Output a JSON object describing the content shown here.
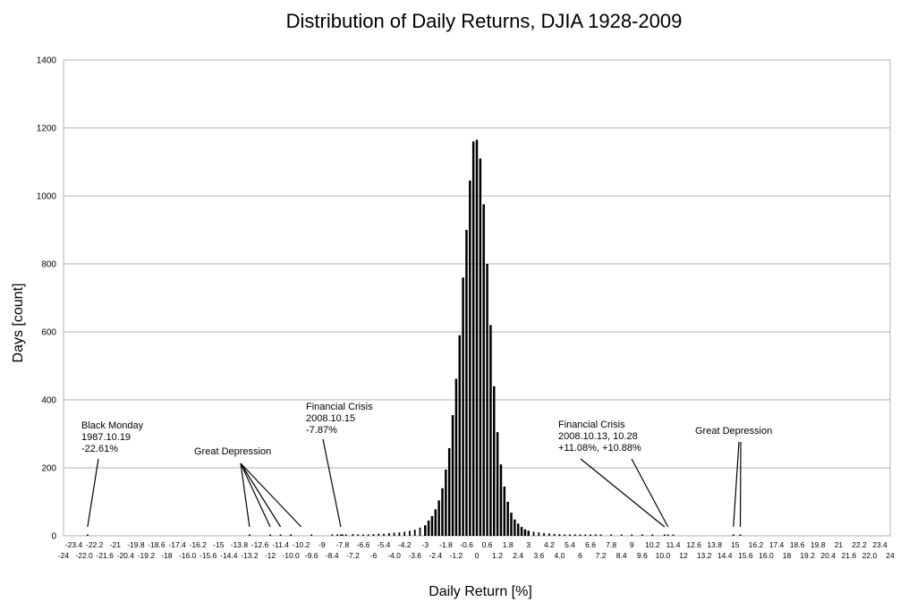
{
  "chart_data": {
    "type": "bar",
    "title": "Distribution of Daily Returns, DJIA 1928-2009",
    "xlabel": "Daily Return [%]",
    "ylabel": "Days [count]",
    "xlim": [
      -24,
      24
    ],
    "ylim": [
      0,
      1400
    ],
    "yticks": [
      "0",
      "200",
      "400",
      "600",
      "800",
      "1000",
      "1200",
      "1400"
    ],
    "grid": true,
    "legend": "none",
    "bar_color": "#000000",
    "x_tick_labels_upper": [
      "-23.4",
      "-22.2",
      "-21",
      "-19.8",
      "-18.6",
      "-17.4",
      "-16.2",
      "-15",
      "-13.8",
      "-12.6",
      "-11.4",
      "-10.2",
      "-9",
      "-7.8",
      "-6.6",
      "-5.4",
      "-4.2",
      "-3",
      "-1.8",
      "-0.6",
      "0.6",
      "1.8",
      "3",
      "4.2",
      "5.4",
      "6.6",
      "7.8",
      "9",
      "10.2",
      "11.4",
      "12.6",
      "13.8",
      "15",
      "16.2",
      "17.4",
      "18.6",
      "19.8",
      "21",
      "22.2",
      "23.4"
    ],
    "x_tick_labels_lower": [
      "-24",
      "-22.0",
      "-21.6",
      "-20.4",
      "-19.2",
      "-18",
      "-16.0",
      "-15.6",
      "-14.4",
      "-13.2",
      "-12",
      "-10.0",
      "-9.6",
      "-8.4",
      "-7.2",
      "-6",
      "-4.0",
      "-3.6",
      "-2.4",
      "-1.2",
      "0",
      "1.2",
      "2.4",
      "3.6",
      "4.0",
      "6",
      "7.2",
      "8.4",
      "9.6",
      "10.0",
      "12",
      "13.2",
      "14.4",
      "15.6",
      "16.0",
      "18",
      "19.2",
      "20.4",
      "21.6",
      "22.0",
      "24"
    ],
    "series": [
      {
        "x": [
          -22.6,
          -13.2,
          -12.0,
          -11.4,
          -10.8,
          -9.6,
          -8.4,
          -8.1,
          -7.9,
          -7.8,
          -7.6,
          -7.2,
          -6.9,
          -6.6,
          -6.3,
          -6.0,
          -5.7,
          -5.4,
          -5.1,
          -4.8,
          -4.5,
          -4.2,
          -3.9,
          -3.6,
          -3.3,
          -3.0,
          -2.8,
          -2.6,
          -2.4,
          -2.2,
          -2.0,
          -1.8,
          -1.6,
          -1.4,
          -1.2,
          -1.0,
          -0.8,
          -0.6,
          -0.4,
          -0.2,
          0.0,
          0.2,
          0.4,
          0.6,
          0.8,
          1.0,
          1.2,
          1.4,
          1.6,
          1.8,
          2.0,
          2.2,
          2.4,
          2.6,
          2.8,
          3.0,
          3.3,
          3.6,
          3.9,
          4.2,
          4.5,
          4.8,
          5.1,
          5.4,
          5.7,
          6.0,
          6.3,
          6.6,
          6.9,
          7.2,
          7.8,
          8.4,
          9.0,
          9.6,
          10.2,
          10.9,
          11.1,
          11.4,
          14.9,
          15.3
        ],
        "values": [
          1,
          1,
          1,
          1,
          1,
          1,
          2,
          3,
          3,
          4,
          4,
          5,
          4,
          4,
          4,
          5,
          6,
          6,
          8,
          9,
          10,
          12,
          15,
          18,
          24,
          31,
          45,
          58,
          78,
          104,
          140,
          195,
          258,
          355,
          462,
          590,
          760,
          900,
          1045,
          1160,
          1165,
          1110,
          975,
          800,
          620,
          440,
          305,
          210,
          145,
          100,
          68,
          48,
          36,
          26,
          19,
          15,
          12,
          10,
          8,
          7,
          6,
          5,
          4,
          4,
          3,
          3,
          3,
          2,
          2,
          2,
          2,
          1,
          1,
          1,
          1,
          2,
          2,
          1,
          1,
          1
        ]
      }
    ],
    "annotations": [
      {
        "lines": [
          "Black Monday",
          "1987.10.19",
          "-22.61%"
        ],
        "targets": [
          -22.6
        ]
      },
      {
        "lines": [
          "Great Depression"
        ],
        "targets": [
          -13.2,
          -12.0,
          -11.4,
          -10.2
        ]
      },
      {
        "lines": [
          "Financial Crisis",
          "2008.10.15",
          "-7.87%"
        ],
        "targets": [
          -7.9
        ]
      },
      {
        "lines": [
          "Financial Crisis",
          "2008.10.13, 10.28",
          "+11.08%, +10.88%"
        ],
        "targets": [
          10.9,
          11.1
        ]
      },
      {
        "lines": [
          "Great Depression"
        ],
        "targets": [
          14.9,
          15.3
        ]
      }
    ]
  }
}
